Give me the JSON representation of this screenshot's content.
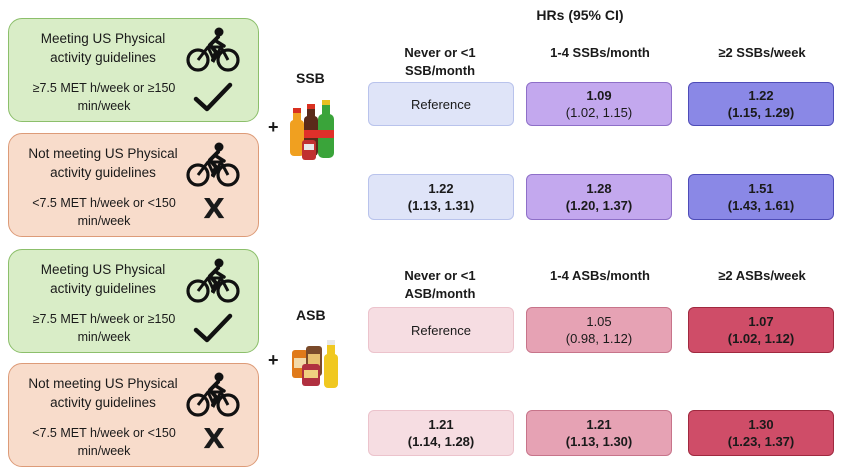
{
  "header": {
    "title": "HRs (95% CI)"
  },
  "colors": {
    "meet_fill": "#d9edc7",
    "notmeet_fill": "#f8dccb",
    "ssb_ref": "#dfe4f8",
    "ssb_mid": "#c3a8ee",
    "ssb_high": "#8a88e6",
    "asb_ref": "#f6dde2",
    "asb_mid": "#e6a2b4",
    "asb_high": "#cf4d68"
  },
  "activity_boxes": [
    {
      "title": "Meeting US Physical activity guidelines",
      "criteria": "≥7.5 MET h/week or ≥150 min/week",
      "mark": "check"
    },
    {
      "title": "Not meeting US Physical activity guidelines",
      "criteria": "<7.5 MET h/week or <150 min/week",
      "mark": "X"
    },
    {
      "title": "Meeting US Physical activity guidelines",
      "criteria": "≥7.5 MET h/week or ≥150 min/week",
      "mark": "check"
    },
    {
      "title": "Not meeting US Physical activity guidelines",
      "criteria": "<7.5 MET h/week or <150 min/week",
      "mark": "X"
    }
  ],
  "plus": "+",
  "ssb": {
    "label": "SSB",
    "columns": [
      "Never or <1 SSB/month",
      "1-4 SSBs/month",
      "≥2 SSBs/week"
    ],
    "rows": [
      [
        {
          "value": "Reference",
          "ci": ""
        },
        {
          "value": "1.09",
          "ci": "(1.02, 1.15)"
        },
        {
          "value": "1.22",
          "ci": "(1.15, 1.29)"
        }
      ],
      [
        {
          "value": "1.22",
          "ci": "(1.13, 1.31)"
        },
        {
          "value": "1.28",
          "ci": "(1.20, 1.37)"
        },
        {
          "value": "1.51",
          "ci": "(1.43, 1.61)"
        }
      ]
    ]
  },
  "asb": {
    "label": "ASB",
    "columns": [
      "Never or <1 ASB/month",
      "1-4 ASBs/month",
      "≥2 ASBs/week"
    ],
    "rows": [
      [
        {
          "value": "Reference",
          "ci": ""
        },
        {
          "value": "1.05",
          "ci": "(0.98, 1.12)"
        },
        {
          "value": "1.07",
          "ci": "(1.02, 1.12)"
        }
      ],
      [
        {
          "value": "1.21",
          "ci": "(1.14, 1.28)"
        },
        {
          "value": "1.21",
          "ci": "(1.13, 1.30)"
        },
        {
          "value": "1.30",
          "ci": "(1.23, 1.37)"
        }
      ]
    ]
  }
}
